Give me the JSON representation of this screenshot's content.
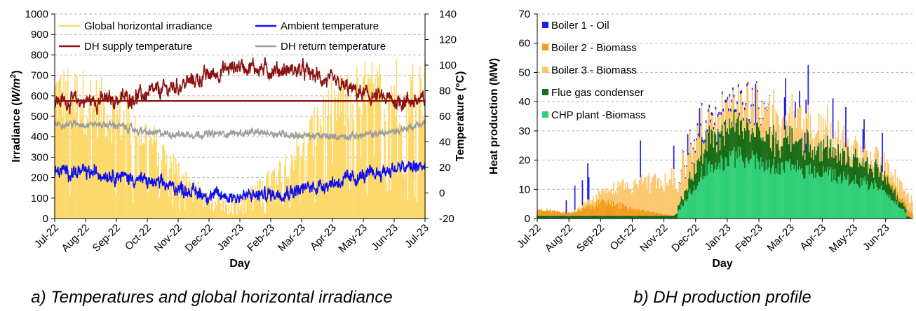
{
  "chart_data": [
    {
      "type": "line",
      "caption": "a) Temperatures and global horizontal irradiance",
      "xlabel": "Day",
      "ylabel_left": "Irradiance (W/m²)",
      "ylabel_left_parts": {
        "main": "Irradiance (",
        "italic": "W/m",
        "sup": "2",
        "end": ")"
      },
      "ylabel_right": "Temperature (°C)",
      "ylim_left": [
        0,
        1000
      ],
      "ylim_right": [
        -20,
        140
      ],
      "yticks_left": [
        "0",
        "100",
        "200",
        "300",
        "400",
        "500",
        "600",
        "700",
        "800",
        "900",
        "1000"
      ],
      "yticks_right": [
        "-20",
        "0",
        "20",
        "40",
        "60",
        "80",
        "100",
        "120",
        "140"
      ],
      "xticks": [
        "Jul-22",
        "Aug-22",
        "Sep-22",
        "Oct-22",
        "Nov-22",
        "Dec-22",
        "Jan-23",
        "Feb-23",
        "Mar-23",
        "Apr-23",
        "May-23",
        "Jun-23",
        "Jul-23"
      ],
      "grid": "horizontal dashed",
      "legend_position": "top",
      "series": [
        {
          "name": "Global horizontal irradiance",
          "axis": "left",
          "color": "#fdd86a",
          "style": "area",
          "x": [
            "Jul-22",
            "Aug-22",
            "Sep-22",
            "Oct-22",
            "Nov-22",
            "Dec-22",
            "Jan-23",
            "Feb-23",
            "Mar-23",
            "Apr-23",
            "May-23",
            "Jun-23",
            "Jul-23"
          ],
          "peak": [
            780,
            740,
            650,
            520,
            300,
            120,
            110,
            250,
            450,
            690,
            780,
            800,
            800
          ]
        },
        {
          "name": "Ambient temperature",
          "axis": "right",
          "color": "#1010ee",
          "x": [
            "Jul-22",
            "Aug-22",
            "Sep-22",
            "Oct-22",
            "Nov-22",
            "Dec-22",
            "Jan-23",
            "Feb-23",
            "Mar-23",
            "Apr-23",
            "May-23",
            "Jun-23",
            "Jul-23"
          ],
          "y": [
            17,
            16,
            14,
            9,
            4,
            -2,
            -3,
            -1,
            3,
            8,
            13,
            19,
            21
          ]
        },
        {
          "name": "DH supply temperature",
          "axis": "right",
          "color": "#8b1212",
          "x": [
            "Jul-22",
            "Aug-22",
            "Sep-22",
            "Oct-22",
            "Nov-22",
            "Dec-22",
            "Jan-23",
            "Feb-23",
            "Mar-23",
            "Apr-23",
            "May-23",
            "Jun-23",
            "Jul-23"
          ],
          "y": [
            72,
            72,
            73,
            77,
            84,
            92,
            100,
            96,
            96,
            86,
            77,
            72,
            72
          ],
          "reference_line": 72
        },
        {
          "name": "DH return temperature",
          "axis": "right",
          "color": "#9e9e9e",
          "x": [
            "Jul-22",
            "Aug-22",
            "Sep-22",
            "Oct-22",
            "Nov-22",
            "Dec-22",
            "Jan-23",
            "Feb-23",
            "Mar-23",
            "Apr-23",
            "May-23",
            "Jun-23",
            "Jul-23"
          ],
          "y": [
            54,
            54,
            53,
            47,
            46,
            46,
            47,
            47,
            45,
            44,
            45,
            48,
            55
          ]
        }
      ]
    },
    {
      "type": "area",
      "stacked": true,
      "caption": "b) DH production profile",
      "xlabel": "Day",
      "ylabel": "Heat production (MW)",
      "ylim": [
        0,
        70
      ],
      "yticks": [
        "0",
        "10",
        "20",
        "30",
        "40",
        "50",
        "60",
        "70"
      ],
      "xticks": [
        "Jul-22",
        "Aug-22",
        "Sep-22",
        "Oct-22",
        "Nov-22",
        "Dec-22",
        "Jan-23",
        "Feb-23",
        "Mar-23",
        "Apr-23",
        "May-23",
        "Jun-23"
      ],
      "grid": "horizontal dashed",
      "legend_position": "top-left",
      "series": [
        {
          "name": "Boiler 1 - Oil",
          "color": "#1f1fe6"
        },
        {
          "name": "Boiler 2 - Biomass",
          "color": "#f39b1a"
        },
        {
          "name": "Boiler 3 - Biomass",
          "color": "#fbc870"
        },
        {
          "name": "Flue gas condenser",
          "color": "#1a6b16"
        },
        {
          "name": "CHP plant -Biomass",
          "color": "#2fcf77"
        }
      ],
      "approximate_stack_profile": {
        "x": [
          "Jul-22",
          "Aug-22",
          "Sep-22",
          "Oct-22",
          "Nov-22",
          "Dec-22",
          "Jan-23",
          "Feb-23",
          "Mar-23",
          "Apr-23",
          "May-23",
          "Jun-23"
        ],
        "chp": [
          0,
          0,
          0,
          0,
          0,
          20,
          23,
          19,
          18,
          15,
          12,
          0
        ],
        "condenser": [
          1,
          1,
          1,
          1,
          1,
          9,
          10,
          9,
          9,
          8,
          6,
          0
        ],
        "boiler2": [
          2,
          1,
          5,
          2,
          0,
          0,
          0,
          0,
          0,
          0,
          0,
          2
        ],
        "boiler3": [
          0,
          0,
          4,
          9,
          13,
          6,
          10,
          8,
          8,
          6,
          4,
          5
        ],
        "boiler1": [
          0,
          0,
          0,
          0,
          0,
          1,
          1,
          0,
          0,
          0,
          0,
          0
        ]
      }
    }
  ]
}
